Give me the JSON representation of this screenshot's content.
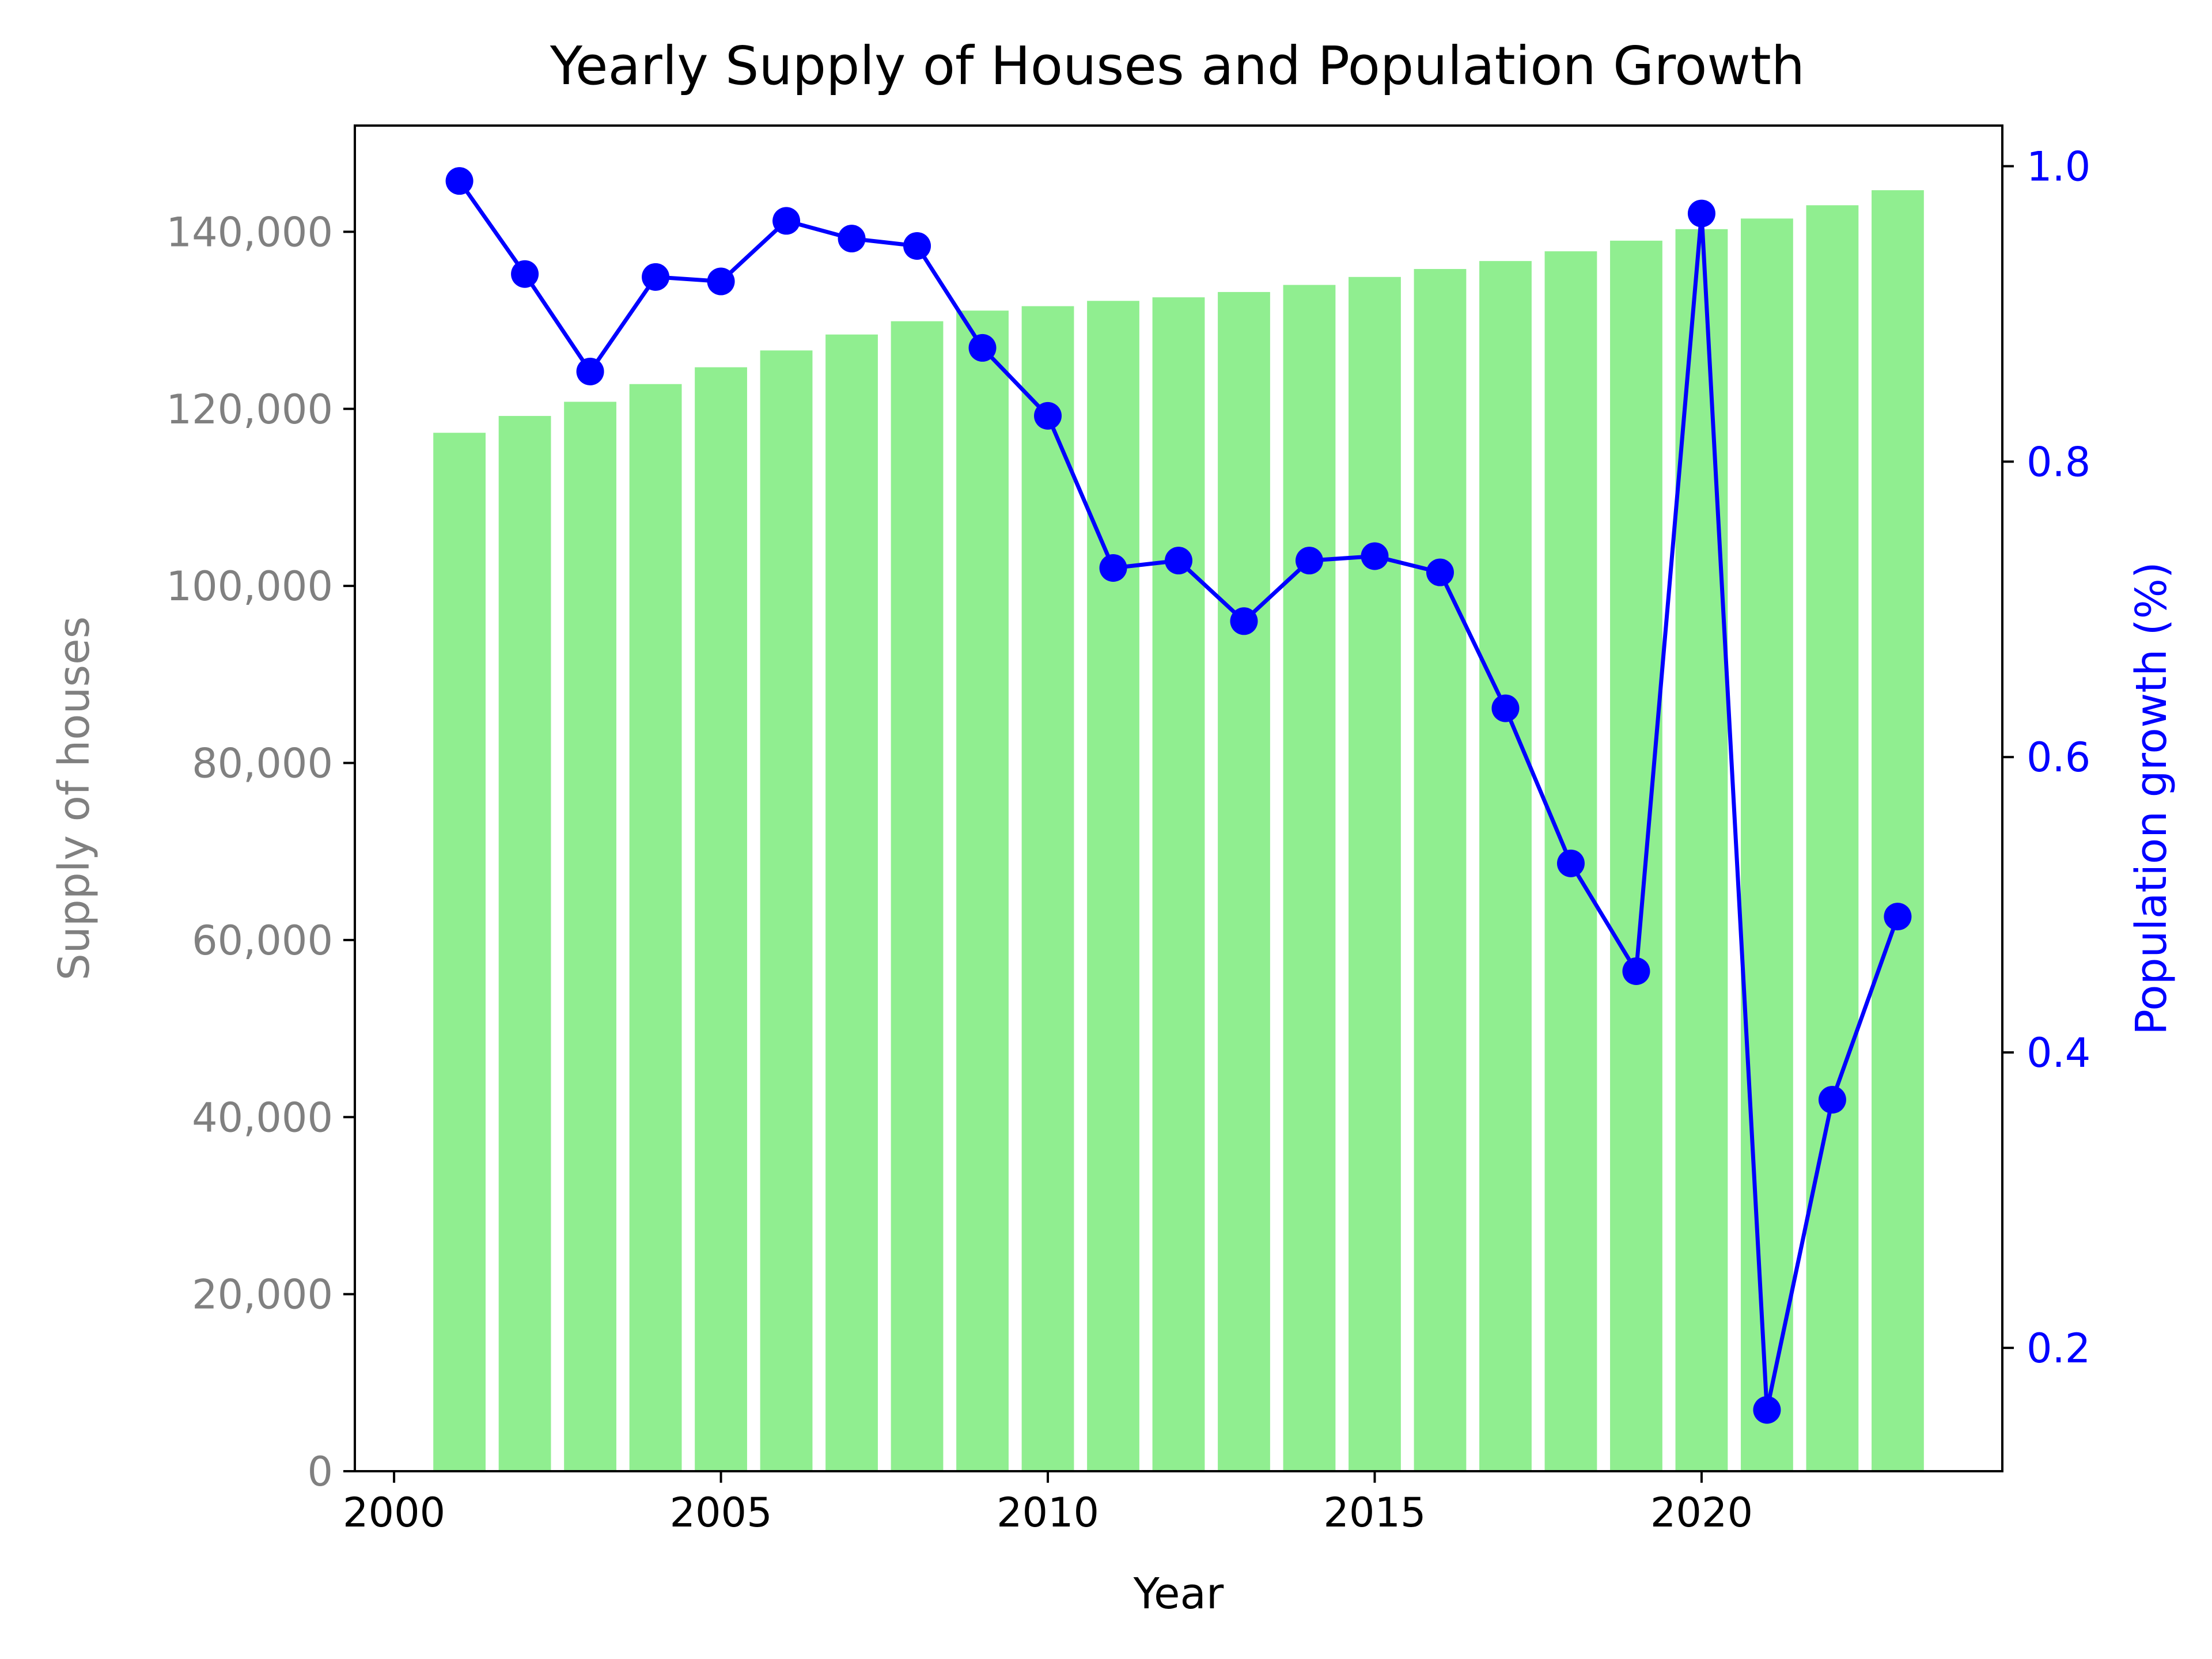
{
  "chart_data": {
    "type": "bar+line",
    "title": "Yearly Supply of Houses and Population Growth",
    "xlabel": "Year",
    "ylabel_left": "Supply of houses",
    "ylabel_right": "Population growth (%)",
    "xlim": [
      1999.4,
      2024.6
    ],
    "ylim_left": [
      0,
      152000
    ],
    "ylim_right": [
      0.1165,
      1.0275
    ],
    "x_ticks": [
      {
        "value": 2000,
        "label": "2000"
      },
      {
        "value": 2005,
        "label": "2005"
      },
      {
        "value": 2010,
        "label": "2010"
      },
      {
        "value": 2015,
        "label": "2015"
      },
      {
        "value": 2020,
        "label": "2020"
      }
    ],
    "y_left_ticks": [
      {
        "value": 0,
        "label": "0"
      },
      {
        "value": 20000,
        "label": "20,000"
      },
      {
        "value": 40000,
        "label": "40,000"
      },
      {
        "value": 60000,
        "label": "60,000"
      },
      {
        "value": 80000,
        "label": "80,000"
      },
      {
        "value": 100000,
        "label": "100,000"
      },
      {
        "value": 120000,
        "label": "120,000"
      },
      {
        "value": 140000,
        "label": "140,000"
      }
    ],
    "y_right_ticks": [
      {
        "value": 0.2,
        "label": "0.2"
      },
      {
        "value": 0.4,
        "label": "0.4"
      },
      {
        "value": 0.6,
        "label": "0.6"
      },
      {
        "value": 0.8,
        "label": "0.8"
      },
      {
        "value": 1.0,
        "label": "1.0"
      }
    ],
    "years": [
      2001,
      2002,
      2003,
      2004,
      2005,
      2006,
      2007,
      2008,
      2009,
      2010,
      2011,
      2012,
      2013,
      2014,
      2015,
      2016,
      2017,
      2018,
      2019,
      2020,
      2021,
      2022,
      2023
    ],
    "bar_series": {
      "axis": "left",
      "color": "#90ee90",
      "values": [
        117300,
        119200,
        120800,
        122800,
        124700,
        126600,
        128400,
        129900,
        131100,
        131600,
        132200,
        132600,
        133200,
        134000,
        134900,
        135800,
        136700,
        137800,
        139000,
        140300,
        141500,
        143000,
        144700
      ]
    },
    "line_series": {
      "axis": "right",
      "color": "#0000ff",
      "values": [
        0.99,
        0.927,
        0.861,
        0.925,
        0.922,
        0.963,
        0.951,
        0.946,
        0.877,
        0.831,
        0.728,
        0.733,
        0.692,
        0.733,
        0.736,
        0.725,
        0.633,
        0.528,
        0.455,
        0.968,
        0.158,
        0.368,
        0.492
      ]
    },
    "colors": {
      "left_axis_text": "#808080",
      "right_axis_text": "#0000ff",
      "frame": "#000000"
    },
    "grid": false,
    "legend": "none"
  }
}
